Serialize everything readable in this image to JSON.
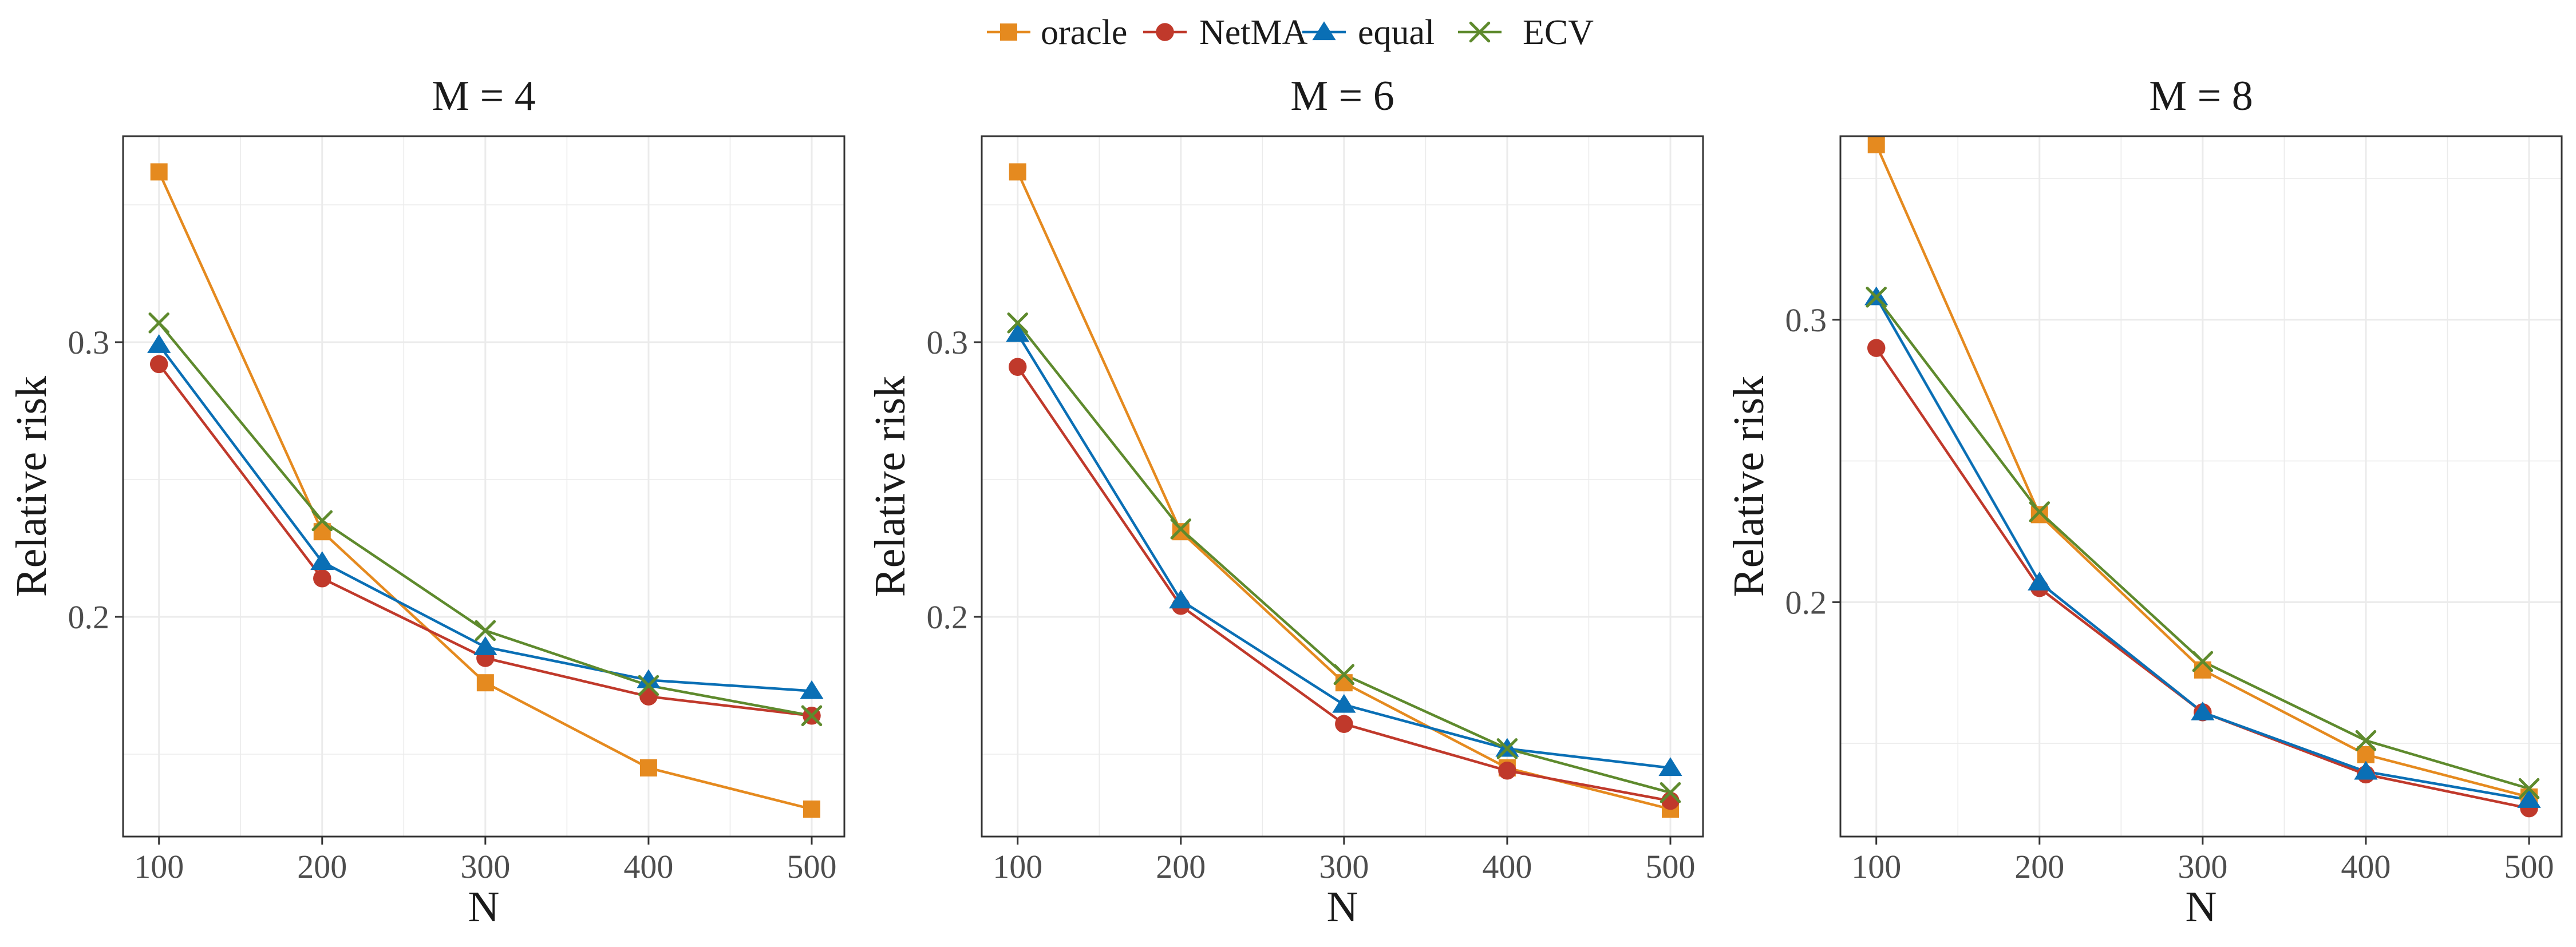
{
  "legend": {
    "items": [
      {
        "name": "oracle",
        "color": "#E58A1F",
        "marker": "square"
      },
      {
        "name": "NetMA",
        "color": "#C0392B",
        "marker": "circle"
      },
      {
        "name": "equal",
        "color": "#0A6FB5",
        "marker": "triangle"
      },
      {
        "name": "ECV",
        "color": "#5E8A2D",
        "marker": "cross"
      }
    ]
  },
  "chart_data": [
    {
      "type": "line",
      "title": "M = 4",
      "xlabel": "N",
      "ylabel": "Relative risk",
      "x": [
        100,
        200,
        300,
        400,
        500
      ],
      "xticks": [
        "100",
        "200",
        "300",
        "400",
        "500"
      ],
      "yticks": [
        {
          "value": 0.2,
          "label": "0.2"
        },
        {
          "value": 0.3,
          "label": "0.3"
        }
      ],
      "xlim": [
        78,
        520
      ],
      "ylim": [
        0.12,
        0.375
      ],
      "grid": true,
      "series": [
        {
          "name": "oracle",
          "values": [
            0.362,
            0.231,
            0.176,
            0.145,
            0.13
          ]
        },
        {
          "name": "NetMA",
          "values": [
            0.292,
            0.214,
            0.185,
            0.171,
            0.164
          ]
        },
        {
          "name": "equal",
          "values": [
            0.299,
            0.22,
            0.189,
            0.177,
            0.173
          ]
        },
        {
          "name": "ECV",
          "values": [
            0.307,
            0.235,
            0.195,
            0.175,
            0.164
          ]
        }
      ]
    },
    {
      "type": "line",
      "title": "M = 6",
      "xlabel": "N",
      "ylabel": "Relative risk",
      "x": [
        100,
        200,
        300,
        400,
        500
      ],
      "xticks": [
        "100",
        "200",
        "300",
        "400",
        "500"
      ],
      "yticks": [
        {
          "value": 0.2,
          "label": "0.2"
        },
        {
          "value": 0.3,
          "label": "0.3"
        }
      ],
      "xlim": [
        78,
        520
      ],
      "ylim": [
        0.12,
        0.375
      ],
      "grid": true,
      "series": [
        {
          "name": "oracle",
          "values": [
            0.362,
            0.231,
            0.176,
            0.145,
            0.13
          ]
        },
        {
          "name": "NetMA",
          "values": [
            0.291,
            0.204,
            0.161,
            0.144,
            0.133
          ]
        },
        {
          "name": "equal",
          "values": [
            0.303,
            0.206,
            0.168,
            0.152,
            0.145
          ]
        },
        {
          "name": "ECV",
          "values": [
            0.307,
            0.232,
            0.179,
            0.152,
            0.136
          ]
        }
      ]
    },
    {
      "type": "line",
      "title": "M = 8",
      "xlabel": "N",
      "ylabel": "Relative risk",
      "x": [
        100,
        200,
        300,
        400,
        500
      ],
      "xticks": [
        "100",
        "200",
        "300",
        "400",
        "500"
      ],
      "yticks": [
        {
          "value": 0.2,
          "label": "0.2"
        },
        {
          "value": 0.3,
          "label": "0.3"
        }
      ],
      "xlim": [
        78,
        520
      ],
      "ylim": [
        0.117,
        0.365
      ],
      "grid": true,
      "series": [
        {
          "name": "oracle",
          "values": [
            0.362,
            0.231,
            0.176,
            0.146,
            0.131
          ]
        },
        {
          "name": "NetMA",
          "values": [
            0.29,
            0.205,
            0.161,
            0.139,
            0.127
          ]
        },
        {
          "name": "equal",
          "values": [
            0.308,
            0.207,
            0.161,
            0.14,
            0.13
          ]
        },
        {
          "name": "ECV",
          "values": [
            0.308,
            0.232,
            0.179,
            0.151,
            0.134
          ]
        }
      ]
    }
  ]
}
